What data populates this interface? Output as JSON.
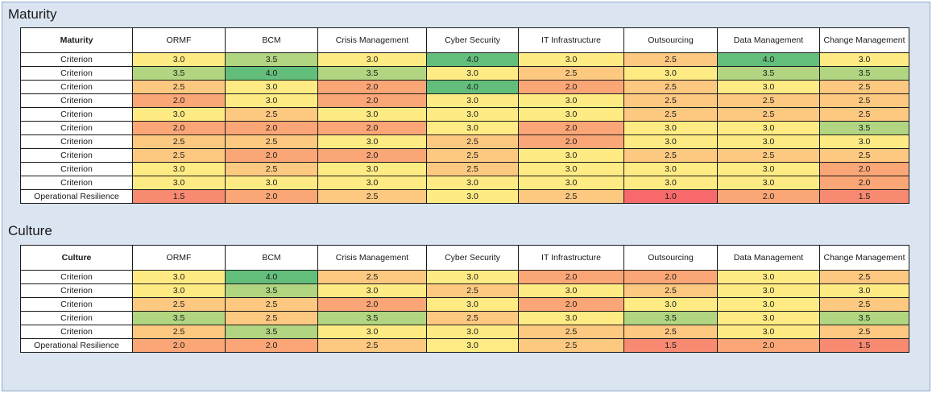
{
  "colors": {
    "1.0": "#f8696b",
    "1.5": "#f98a72",
    "2.0": "#fba676",
    "2.5": "#fdc880",
    "3.0": "#ffeb84",
    "3.5": "#b1d580",
    "4.0": "#63be7b"
  },
  "chart_data": [
    {
      "type": "heatmap",
      "title": "Maturity",
      "corner_label": "Maturity",
      "columns": [
        "ORMF",
        "BCM",
        "Crisis Management",
        "Cyber Security",
        "IT Infrastructure",
        "Outsourcing",
        "Data Management",
        "Change Management"
      ],
      "rows": [
        {
          "label": "Criterion",
          "values": [
            "3.0",
            "3.5",
            "3.0",
            "4.0",
            "3.0",
            "2.5",
            "4.0",
            "3.0"
          ]
        },
        {
          "label": "Criterion",
          "values": [
            "3.5",
            "4.0",
            "3.5",
            "3.0",
            "2.5",
            "3.0",
            "3.5",
            "3.5"
          ]
        },
        {
          "label": "Criterion",
          "values": [
            "2.5",
            "3.0",
            "2.0",
            "4.0",
            "2.0",
            "2.5",
            "3.0",
            "2.5"
          ]
        },
        {
          "label": "Criterion",
          "values": [
            "2.0",
            "3.0",
            "2.0",
            "3.0",
            "3.0",
            "2.5",
            "2.5",
            "2.5"
          ]
        },
        {
          "label": "Criterion",
          "values": [
            "3.0",
            "2.5",
            "3.0",
            "3.0",
            "3.0",
            "2.5",
            "2.5",
            "2.5"
          ]
        },
        {
          "label": "Criterion",
          "values": [
            "2.0",
            "2.0",
            "2.0",
            "3.0",
            "2.0",
            "3.0",
            "3.0",
            "3.5"
          ]
        },
        {
          "label": "Criterion",
          "values": [
            "2.5",
            "2.5",
            "3.0",
            "2.5",
            "2.0",
            "3.0",
            "3.0",
            "3.0"
          ]
        },
        {
          "label": "Criterion",
          "values": [
            "2.5",
            "2.0",
            "2.0",
            "2.5",
            "3.0",
            "2.5",
            "2.5",
            "2.5"
          ]
        },
        {
          "label": "Criterion",
          "values": [
            "3.0",
            "2.5",
            "3.0",
            "2.5",
            "3.0",
            "3.0",
            "3.0",
            "2.0"
          ]
        },
        {
          "label": "Criterion",
          "values": [
            "3.0",
            "3.0",
            "3.0",
            "3.0",
            "3.0",
            "3.0",
            "3.0",
            "2.0"
          ]
        },
        {
          "label": "Operational Resilience",
          "values": [
            "1.5",
            "2.0",
            "2.5",
            "3.0",
            "2.5",
            "1.0",
            "2.0",
            "1.5"
          ]
        }
      ]
    },
    {
      "type": "heatmap",
      "title": "Culture",
      "corner_label": "Culture",
      "columns": [
        "ORMF",
        "BCM",
        "Crisis Management",
        "Cyber Security",
        "IT Infrastructure",
        "Outsourcing",
        "Data Management",
        "Change Management"
      ],
      "rows": [
        {
          "label": "Criterion",
          "values": [
            "3.0",
            "4.0",
            "2.5",
            "3.0",
            "2.0",
            "2.0",
            "3.0",
            "2.5"
          ]
        },
        {
          "label": "Criterion",
          "values": [
            "3.0",
            "3.5",
            "3.0",
            "2.5",
            "3.0",
            "2.5",
            "3.0",
            "3.0"
          ]
        },
        {
          "label": "Criterion",
          "values": [
            "2.5",
            "2.5",
            "2.0",
            "3.0",
            "2.0",
            "3.0",
            "3.0",
            "2.5"
          ]
        },
        {
          "label": "Criterion",
          "values": [
            "3.5",
            "2.5",
            "3.5",
            "2.5",
            "3.0",
            "3.5",
            "3.0",
            "3.5"
          ]
        },
        {
          "label": "Criterion",
          "values": [
            "2.5",
            "3.5",
            "3.0",
            "3.0",
            "2.5",
            "2.5",
            "3.0",
            "2.5"
          ]
        },
        {
          "label": "Operational Resilience",
          "values": [
            "2.0",
            "2.0",
            "2.5",
            "3.0",
            "2.5",
            "1.5",
            "2.0",
            "1.5"
          ]
        }
      ]
    }
  ]
}
